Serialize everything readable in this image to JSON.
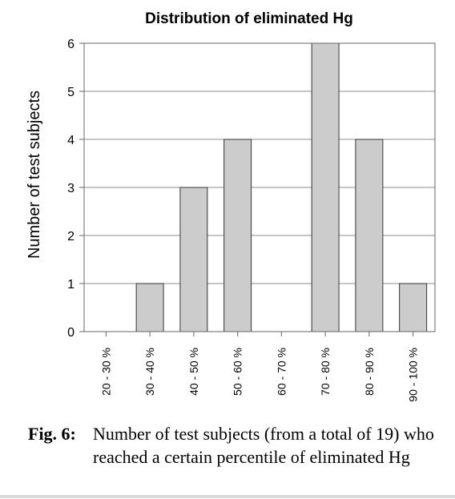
{
  "chart_data": {
    "type": "bar",
    "title": "Distribution of eliminated Hg",
    "xlabel": "",
    "ylabel": "Number of test subjects",
    "categories": [
      "20 - 30 %",
      "30 - 40 %",
      "40 - 50 %",
      "50 - 60 %",
      "60 - 70 %",
      "70 - 80 %",
      "80 - 90 %",
      "90 - 100 %"
    ],
    "values": [
      0,
      1,
      3,
      4,
      0,
      6,
      4,
      1
    ],
    "ylim": [
      0,
      6
    ],
    "yticks": [
      0,
      1,
      2,
      3,
      4,
      5,
      6
    ],
    "grid": "horizontal",
    "bar_color": "#cccccc",
    "bar_edge_color": "#333333"
  },
  "caption": {
    "label": "Fig. 6:",
    "text": "Number of test subjects (from a total of 19) who reached a certain percentile of eliminated Hg"
  }
}
